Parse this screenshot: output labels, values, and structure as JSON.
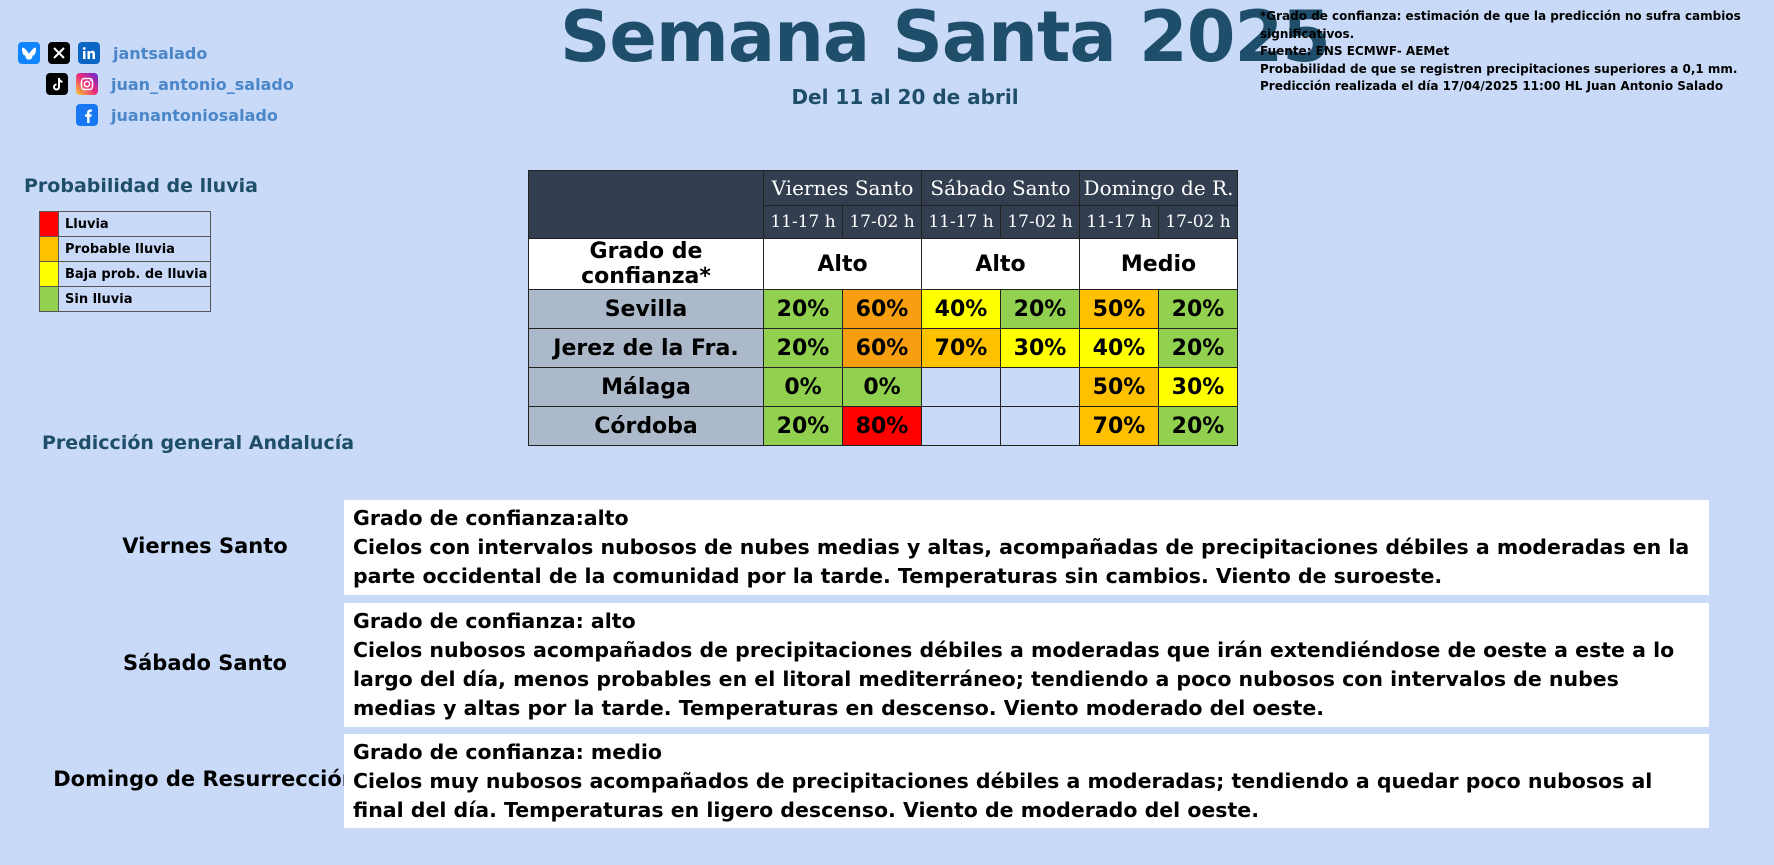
{
  "social": {
    "rows": [
      {
        "icons": [
          "bluesky-icon",
          "x-icon",
          "linkedin-icon"
        ],
        "handle": "jantsalado"
      },
      {
        "icons": [
          "tiktok-icon",
          "instagram-icon"
        ],
        "handle": "juan_antonio_salado"
      },
      {
        "icons": [
          "facebook-icon"
        ],
        "handle": "juanantoniosalado"
      }
    ]
  },
  "header": {
    "title": "Semana Santa 2025",
    "subtitle": "Del 11 al 20 de abril"
  },
  "notes": [
    "*Grado de confianza: estimación de que la predicción no sufra cambios significativos.",
    "Fuente: ENS ECMWF- AEMet",
    "Probabilidad de que se registren precipitaciones superiores a 0,1 mm.",
    "Predicción realizada el día 17/04/2025 11:00 HL Juan Antonio Salado"
  ],
  "legend": {
    "title": "Probabilidad de lluvia",
    "items": [
      {
        "label": "Lluvia",
        "color": "#ff0000"
      },
      {
        "label": "Probable lluvia",
        "color": "#ffc000"
      },
      {
        "label": "Baja prob. de lluvia",
        "color": "#ffff00"
      },
      {
        "label": "Sin lluvia",
        "color": "#92d050"
      }
    ]
  },
  "table": {
    "days": [
      "Viernes Santo",
      "Sábado Santo",
      "Domingo de R."
    ],
    "slots": [
      "11-17 h",
      "17-02 h",
      "11-17 h",
      "17-02 h",
      "11-17 h",
      "17-02 h"
    ],
    "confidence_label": "Grado de confianza*",
    "confidence": [
      "Alto",
      "Alto",
      "Medio"
    ],
    "rows": [
      {
        "city": "Sevilla",
        "values": [
          "20%",
          "60%",
          "40%",
          "20%",
          "50%",
          "20%"
        ]
      },
      {
        "city": "Jerez de la Fra.",
        "values": [
          "20%",
          "60%",
          "70%",
          "30%",
          "40%",
          "20%"
        ]
      },
      {
        "city": "Málaga",
        "values": [
          "0%",
          "0%",
          "",
          "",
          "50%",
          "30%"
        ]
      },
      {
        "city": "Córdoba",
        "values": [
          "20%",
          "80%",
          "",
          "",
          "70%",
          "20%"
        ]
      }
    ]
  },
  "prediction": {
    "title": "Predicción general Andalucía",
    "items": [
      {
        "day": "Viernes Santo",
        "confidence": "Grado de confianza:alto",
        "text": "Cielos con intervalos nubosos de nubes medias y altas, acompañadas de precipitaciones débiles a moderadas en la parte occidental de la comunidad por la tarde. Temperaturas sin cambios. Viento de suroeste."
      },
      {
        "day": "Sábado Santo",
        "confidence": "Grado de confianza: alto",
        "text": "Cielos nubosos acompañados de precipitaciones débiles a moderadas que irán extendiéndose de oeste a este a lo largo del día, menos probables en el litoral mediterráneo; tendiendo a poco nubosos con intervalos de nubes medias y altas por la tarde. Temperaturas en descenso. Viento moderado del oeste."
      },
      {
        "day": "Domingo de Resurrección",
        "confidence": "Grado de confianza: medio",
        "text": "Cielos muy nubosos acompañados de precipitaciones débiles a moderadas; tendiendo a quedar poco nubosos al final del día. Temperaturas en ligero descenso. Viento de moderado del oeste."
      }
    ]
  }
}
